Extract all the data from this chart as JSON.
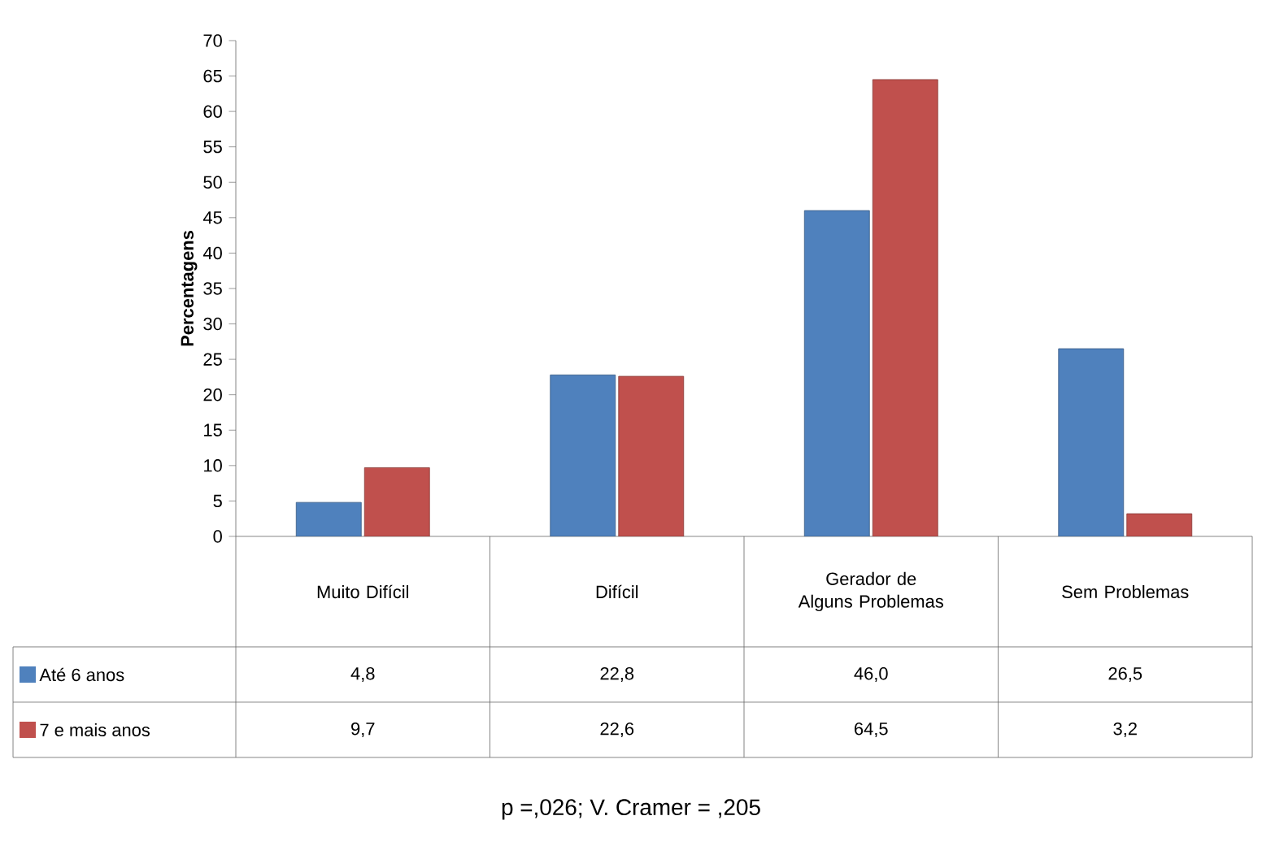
{
  "chart_data": {
    "type": "bar",
    "ylabel": "Percentagens",
    "categories": [
      "Muito Difícil",
      "Difícil",
      "Gerador de Alguns Problemas",
      "Sem Problemas"
    ],
    "series": [
      {
        "name": "Até 6 anos",
        "color": "#4f81bd",
        "values": [
          4.8,
          22.8,
          46.0,
          26.5
        ],
        "value_labels": [
          "4,8",
          "22,8",
          "46,0",
          "26,5"
        ]
      },
      {
        "name": "7 e mais anos",
        "color": "#c0504d",
        "values": [
          9.7,
          22.6,
          64.5,
          3.2
        ],
        "value_labels": [
          "9,7",
          "22,6",
          "64,5",
          "3,2"
        ]
      }
    ],
    "ylim": [
      0,
      70
    ],
    "yticks": [
      0,
      5,
      10,
      15,
      20,
      25,
      30,
      35,
      40,
      45,
      50,
      55,
      60,
      65,
      70
    ],
    "legend": "bottom left",
    "annotations": [
      "p =,026; V. Cramer = ,205"
    ]
  }
}
